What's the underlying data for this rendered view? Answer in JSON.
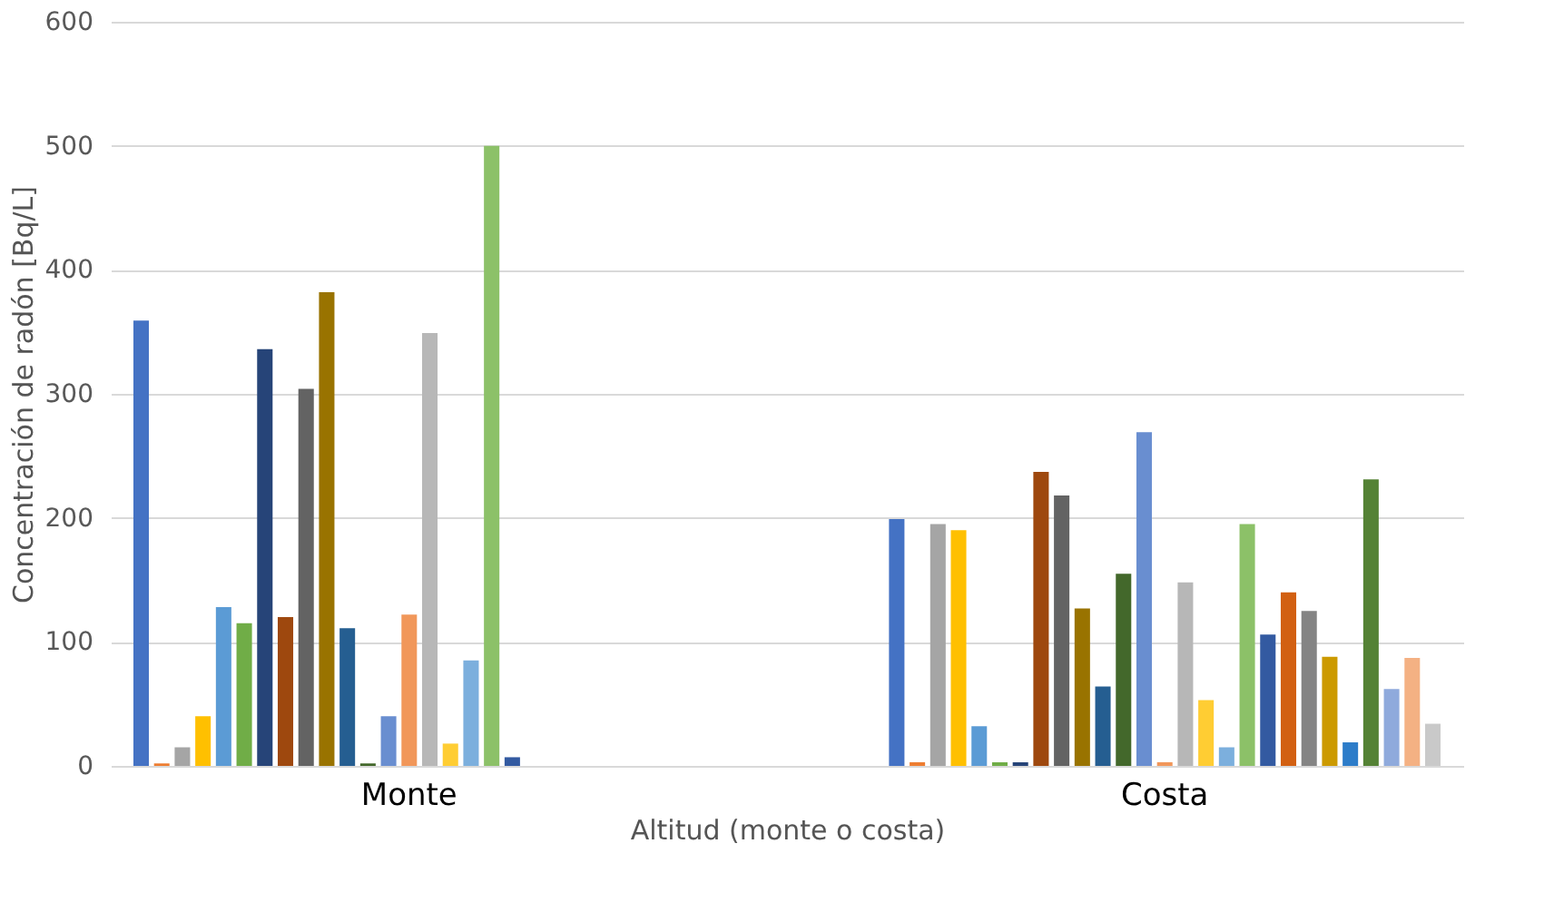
{
  "chart_data": {
    "type": "bar",
    "xlabel": "Altitud (monte o costa)",
    "ylabel": "Concentración de radón [Bq/L]",
    "categories": [
      "Monte",
      "Costa"
    ],
    "ylim": [
      0,
      600
    ],
    "yticks": [
      0,
      100,
      200,
      300,
      400,
      500,
      600
    ],
    "grid": "y",
    "legend": false,
    "series": [
      {
        "color": "#4472c4",
        "values": [
          359,
          199
        ]
      },
      {
        "color": "#ed7d31",
        "values": [
          2,
          3
        ]
      },
      {
        "color": "#a5a5a5",
        "values": [
          15,
          195
        ]
      },
      {
        "color": "#ffc000",
        "values": [
          40,
          190
        ]
      },
      {
        "color": "#5b9bd5",
        "values": [
          128,
          32
        ]
      },
      {
        "color": "#70ad47",
        "values": [
          115,
          3
        ]
      },
      {
        "color": "#264478",
        "values": [
          336,
          3
        ]
      },
      {
        "color": "#9e480e",
        "values": [
          120,
          237
        ]
      },
      {
        "color": "#636363",
        "values": [
          304,
          218
        ]
      },
      {
        "color": "#997300",
        "values": [
          382,
          127
        ]
      },
      {
        "color": "#255e91",
        "values": [
          111,
          64
        ]
      },
      {
        "color": "#43682b",
        "values": [
          2,
          155
        ]
      },
      {
        "color": "#698ed0",
        "values": [
          40,
          269
        ]
      },
      {
        "color": "#f1975a",
        "values": [
          122,
          3
        ]
      },
      {
        "color": "#b7b7b7",
        "values": [
          349,
          148
        ]
      },
      {
        "color": "#ffcd33",
        "values": [
          18,
          53
        ]
      },
      {
        "color": "#7cafdd",
        "values": [
          85,
          15
        ]
      },
      {
        "color": "#8cc168",
        "values": [
          500,
          195
        ]
      },
      {
        "color": "#335aa1",
        "values": [
          7,
          106
        ]
      },
      {
        "color": "#d26012",
        "values": [
          null,
          140
        ]
      },
      {
        "color": "#848484",
        "values": [
          null,
          125
        ]
      },
      {
        "color": "#cc9a00",
        "values": [
          null,
          88
        ]
      },
      {
        "color": "#2c7cc9",
        "values": [
          null,
          19
        ]
      },
      {
        "color": "#548235",
        "values": [
          null,
          231
        ]
      },
      {
        "color": "#8faadc",
        "values": [
          null,
          62
        ]
      },
      {
        "color": "#f4b183",
        "values": [
          null,
          87
        ]
      },
      {
        "color": "#c9c9c9",
        "values": [
          null,
          34
        ]
      }
    ]
  }
}
